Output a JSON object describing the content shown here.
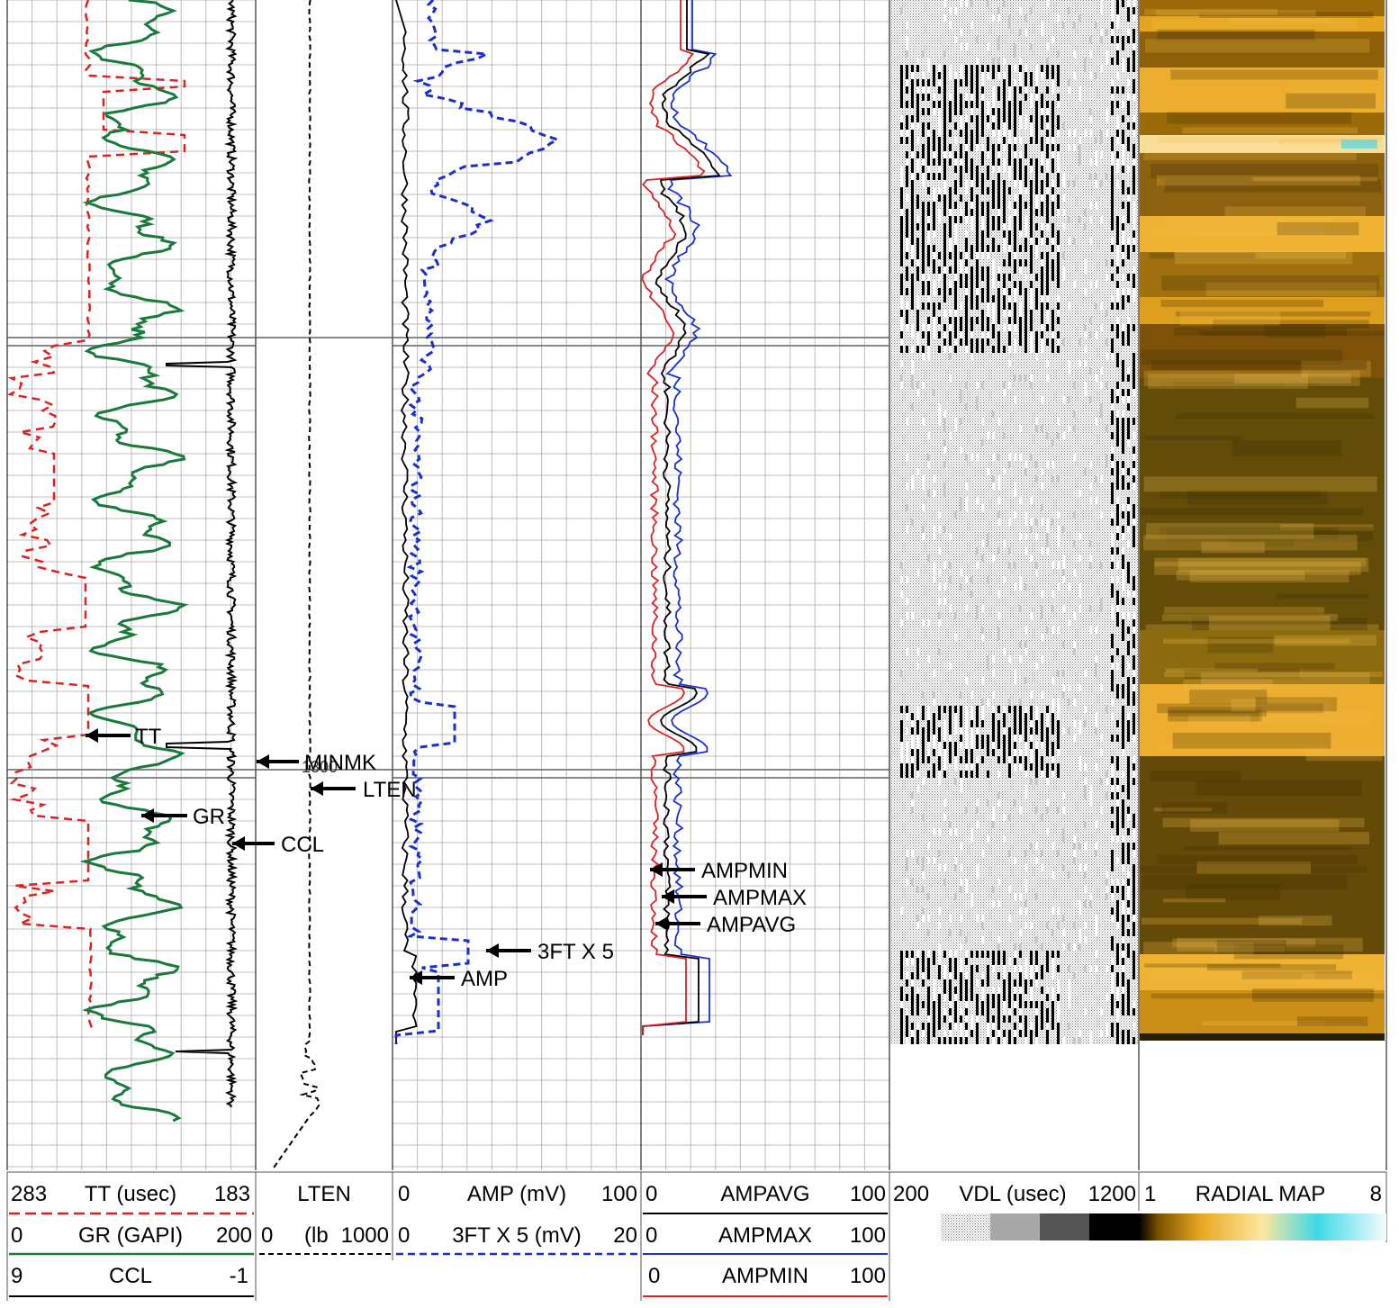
{
  "chart_data": {
    "type": "line",
    "title": "",
    "tracks": [
      {
        "id": "gr-tt-ccl",
        "curves": [
          {
            "name": "TT",
            "unit": "usec",
            "scale": [
              283,
              183
            ],
            "color": "#dd2222",
            "dash": "dashed"
          },
          {
            "name": "GR",
            "unit": "GAPI",
            "scale": [
              0,
              200
            ],
            "color": "#1a7a3c",
            "dash": "solid"
          },
          {
            "name": "CCL",
            "unit": "",
            "scale": [
              9,
              -1
            ],
            "color": "#000000",
            "dash": "solid"
          }
        ]
      },
      {
        "id": "lten",
        "curves": [
          {
            "name": "LTEN",
            "unit": "lb",
            "scale": [
              0,
              1000
            ],
            "color": "#000000",
            "dash": "dashed"
          }
        ]
      },
      {
        "id": "amp",
        "curves": [
          {
            "name": "AMP",
            "unit": "mV",
            "scale": [
              0,
              100
            ],
            "color": "#000000",
            "dash": "solid"
          },
          {
            "name": "3FT X 5",
            "unit": "mV",
            "scale": [
              0,
              20
            ],
            "color": "#1a2fd0",
            "dash": "dashed"
          }
        ]
      },
      {
        "id": "ampstats",
        "curves": [
          {
            "name": "AMPAVG",
            "scale": [
              0,
              100
            ],
            "color": "#000000",
            "dash": "solid"
          },
          {
            "name": "AMPMAX",
            "scale": [
              0,
              100
            ],
            "color": "#1a2fd0",
            "dash": "solid"
          },
          {
            "name": "AMPMIN",
            "scale": [
              0,
              100
            ],
            "color": "#dd2222",
            "dash": "solid"
          }
        ]
      },
      {
        "id": "vdl",
        "curves": [
          {
            "name": "VDL",
            "unit": "usec",
            "scale": [
              200,
              1200
            ],
            "color": "#000000"
          }
        ]
      },
      {
        "id": "radial",
        "curves": [
          {
            "name": "RADIAL MAP",
            "scale": [
              1,
              8
            ],
            "color": "#e8a820"
          }
        ]
      }
    ]
  },
  "header": {
    "row1": {
      "tt_min": "283",
      "tt_label": "TT (usec)",
      "tt_max": "183",
      "lten_label": "LTEN",
      "amp_min": "0",
      "amp_label": "AMP (mV)",
      "amp_max": "100",
      "ampavg_min": "0",
      "ampavg_label": "AMPAVG",
      "ampavg_max": "100",
      "vdl_min": "200",
      "vdl_label": "VDL (usec)",
      "vdl_max": "1200",
      "radial_min": "1",
      "radial_label": "RADIAL MAP",
      "radial_max": "8"
    },
    "row2": {
      "gr_min": "0",
      "gr_label": "GR (GAPI)",
      "gr_max": "200",
      "lten_min": "0",
      "lten_unit": "(lb",
      "lten_max": "1000",
      "ft3_min": "0",
      "ft3_label": "3FT X 5 (mV)",
      "ft3_max": "20",
      "ampmax_min": "0",
      "ampmax_label": "AMPMAX",
      "ampmax_max": "100"
    },
    "row3": {
      "ccl_min": "9",
      "ccl_label": "CCL",
      "ccl_max": "-1",
      "ampmin_min": "0",
      "ampmin_label": "AMPMIN",
      "ampmin_max": "100"
    }
  },
  "annotations": {
    "tt": "TT",
    "gr": "GR",
    "ccl": "CCL",
    "minmk": "MINMK",
    "lten": "LTEN",
    "ft3": "3FT X 5",
    "amp": "AMP",
    "ampmin": "AMPMIN",
    "ampmax": "AMPMAX",
    "ampavg": "AMPAVG"
  },
  "depth_marker": "1300"
}
